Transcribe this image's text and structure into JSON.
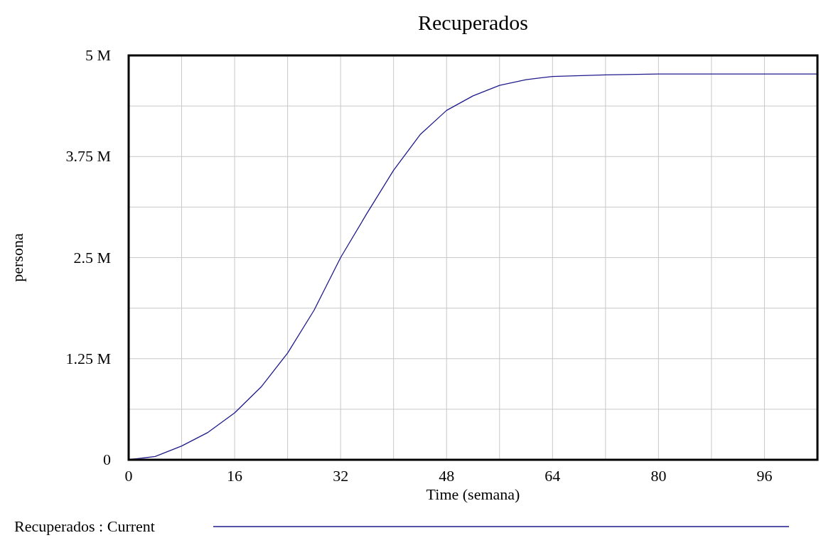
{
  "chart_data": {
    "type": "line",
    "title": "Recuperados",
    "xlabel": "Time (semana)",
    "ylabel": "persona",
    "x": [
      0,
      4,
      8,
      12,
      16,
      20,
      24,
      28,
      32,
      36,
      40,
      44,
      48,
      52,
      56,
      60,
      64,
      72,
      80,
      88,
      96,
      104
    ],
    "series": [
      {
        "name": "Recuperados : Current",
        "color": "#1f1a8c",
        "values": [
          0,
          40000,
          170000,
          340000,
          580000,
          900000,
          1320000,
          1850000,
          2500000,
          3050000,
          3580000,
          4020000,
          4320000,
          4500000,
          4630000,
          4700000,
          4740000,
          4760000,
          4770000,
          4770000,
          4770000,
          4770000
        ]
      }
    ],
    "xlim": [
      0,
      104
    ],
    "xticks": [
      0,
      {
        "value": 8,
        "label": null
      },
      16,
      {
        "value": 24,
        "label": null
      },
      32,
      {
        "value": 40,
        "label": null
      },
      48,
      {
        "value": 56,
        "label": null
      },
      64,
      {
        "value": 72,
        "label": null
      },
      80,
      {
        "value": 88,
        "label": null
      },
      96,
      {
        "value": 104,
        "label": null
      }
    ],
    "ylim": [
      0,
      5000000
    ],
    "yticks": [
      {
        "value": 0,
        "label": "0"
      },
      {
        "value": 625000,
        "label": null
      },
      {
        "value": 1250000,
        "label": "1.25 M"
      },
      {
        "value": 1875000,
        "label": null
      },
      {
        "value": 2500000,
        "label": "2.5 M"
      },
      {
        "value": 3125000,
        "label": null
      },
      {
        "value": 3750000,
        "label": "3.75 M"
      },
      {
        "value": 4375000,
        "label": null
      },
      {
        "value": 5000000,
        "label": "5 M"
      }
    ],
    "grid": true,
    "legend": "bottom",
    "line_style": "solid",
    "marker": "none"
  }
}
